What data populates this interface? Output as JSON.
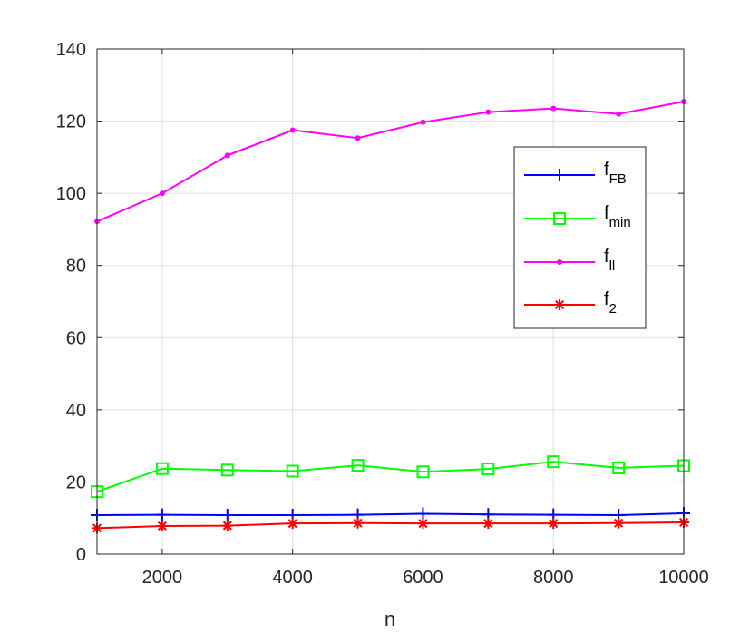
{
  "chart_data": {
    "type": "line",
    "title": "",
    "xlabel": "n",
    "ylabel": "",
    "xlim": [
      1000,
      10000
    ],
    "ylim": [
      0,
      140
    ],
    "x_ticks": [
      2000,
      4000,
      6000,
      8000,
      10000
    ],
    "y_ticks": [
      0,
      20,
      40,
      60,
      80,
      100,
      120,
      140
    ],
    "grid": true,
    "legend_position": "right",
    "x": [
      1000,
      2000,
      3000,
      4000,
      5000,
      6000,
      7000,
      8000,
      9000,
      10000
    ],
    "series": [
      {
        "name": "f",
        "sub": "FB",
        "color": "#0000ff",
        "marker": "plus",
        "values": [
          10.8,
          10.9,
          10.8,
          10.8,
          10.9,
          11.2,
          11.0,
          10.9,
          10.8,
          11.3
        ]
      },
      {
        "name": "f",
        "sub": "min",
        "color": "#00ff00",
        "marker": "square",
        "values": [
          17.3,
          23.7,
          23.3,
          23.0,
          24.6,
          22.8,
          23.6,
          25.6,
          23.9,
          24.5
        ]
      },
      {
        "name": "f",
        "sub": "ll",
        "color": "#ff00ff",
        "marker": "dot",
        "values": [
          92.2,
          100.0,
          110.5,
          117.5,
          115.3,
          119.7,
          122.5,
          123.5,
          122.0,
          125.4
        ]
      },
      {
        "name": "f",
        "sub": "2",
        "color": "#ff0000",
        "marker": "asterisk",
        "values": [
          7.2,
          7.8,
          7.9,
          8.5,
          8.6,
          8.5,
          8.5,
          8.5,
          8.6,
          8.8
        ]
      }
    ]
  }
}
